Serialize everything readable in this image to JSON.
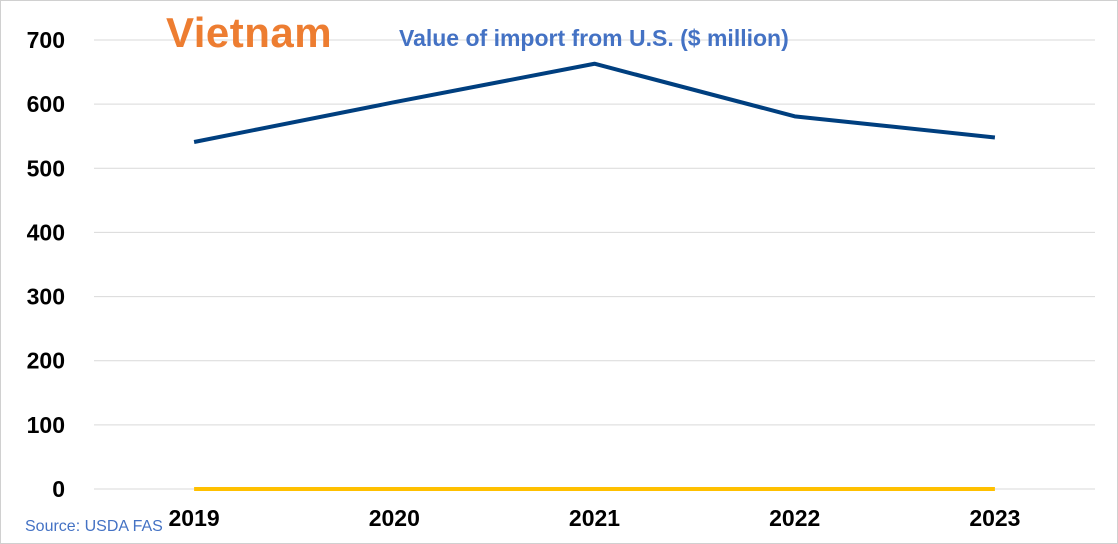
{
  "chart_data": {
    "type": "line",
    "title_country": "Vietnam",
    "title": "Value of import from U.S. ($ million)",
    "source": "Source: USDA FAS",
    "categories": [
      "2019",
      "2020",
      "2021",
      "2022",
      "2023"
    ],
    "series": [
      {
        "values": [
          541,
          603,
          663,
          581,
          548
        ],
        "color": "#003f7f"
      },
      {
        "values": [
          0,
          0,
          0,
          0,
          0
        ],
        "color": "#ffc000"
      }
    ],
    "yticks": [
      0,
      100,
      200,
      300,
      400,
      500,
      600,
      700
    ],
    "ylim": [
      0,
      700
    ],
    "grid": true,
    "xlabel": "",
    "ylabel": ""
  }
}
